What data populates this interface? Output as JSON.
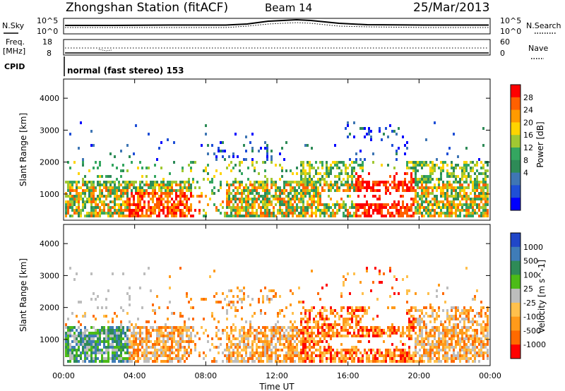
{
  "header": {
    "station": "Zhongshan Station (fitACF)",
    "beam": "Beam 14",
    "date": "25/Mar/2013"
  },
  "top_panels": {
    "nsky_label": "N.Sky",
    "nsky_ticks": [
      "10^5",
      "10^0"
    ],
    "nsearch_label": "N.Search",
    "nsearch_ticks": [
      "10^5",
      "10^0"
    ],
    "freq_label_line1": "Freq.",
    "freq_label_line2": "[MHz]",
    "freq_ticks": [
      "18",
      "8"
    ],
    "nave_label": "Nave",
    "nave_ticks": [
      "60",
      "0"
    ],
    "cpid_label": "CPID",
    "cpid_text": "normal (fast stereo) 153"
  },
  "chart_data": [
    {
      "type": "heatmap",
      "name": "power",
      "ylabel": "Slant Range [km]",
      "yticks": [
        "4000",
        "3000",
        "2000",
        "1000"
      ],
      "xticks": [
        "00:00",
        "04:00",
        "08:00",
        "12:00",
        "16:00",
        "20:00",
        "00:00"
      ],
      "colorbar_label": "Power [dB]",
      "colorbar_ticks": [
        "28",
        "24",
        "20",
        "16",
        "12",
        "8",
        "4"
      ],
      "colorbar_colors": [
        "#ff0000",
        "#ff6000",
        "#ff9a00",
        "#ffd400",
        "#a0c832",
        "#34a660",
        "#2e8b57",
        "#3f76b4",
        "#1f4fd6",
        "#0000ff"
      ],
      "ylim": [
        180,
        4600
      ]
    },
    {
      "type": "heatmap",
      "name": "velocity",
      "ylabel": "Slant Range [km]",
      "yticks": [
        "4000",
        "3000",
        "2000",
        "1000"
      ],
      "xticks": [
        "00:00",
        "04:00",
        "08:00",
        "12:00",
        "16:00",
        "20:00",
        "00:00"
      ],
      "xlabel": "Time UT",
      "colorbar_label": "Velocity [m s^-1]",
      "colorbar_ticks": [
        "1000",
        "500",
        "100",
        "25",
        "-25",
        "-100",
        "-500",
        "-1000"
      ],
      "colorbar_colors": [
        "#2046c8",
        "#3f7cb8",
        "#2e8b57",
        "#4cbb17",
        "#bdbdbd",
        "#ffc04d",
        "#ff9a1a",
        "#ff6a00",
        "#ff0000"
      ],
      "ylim": [
        180,
        4600
      ]
    }
  ]
}
